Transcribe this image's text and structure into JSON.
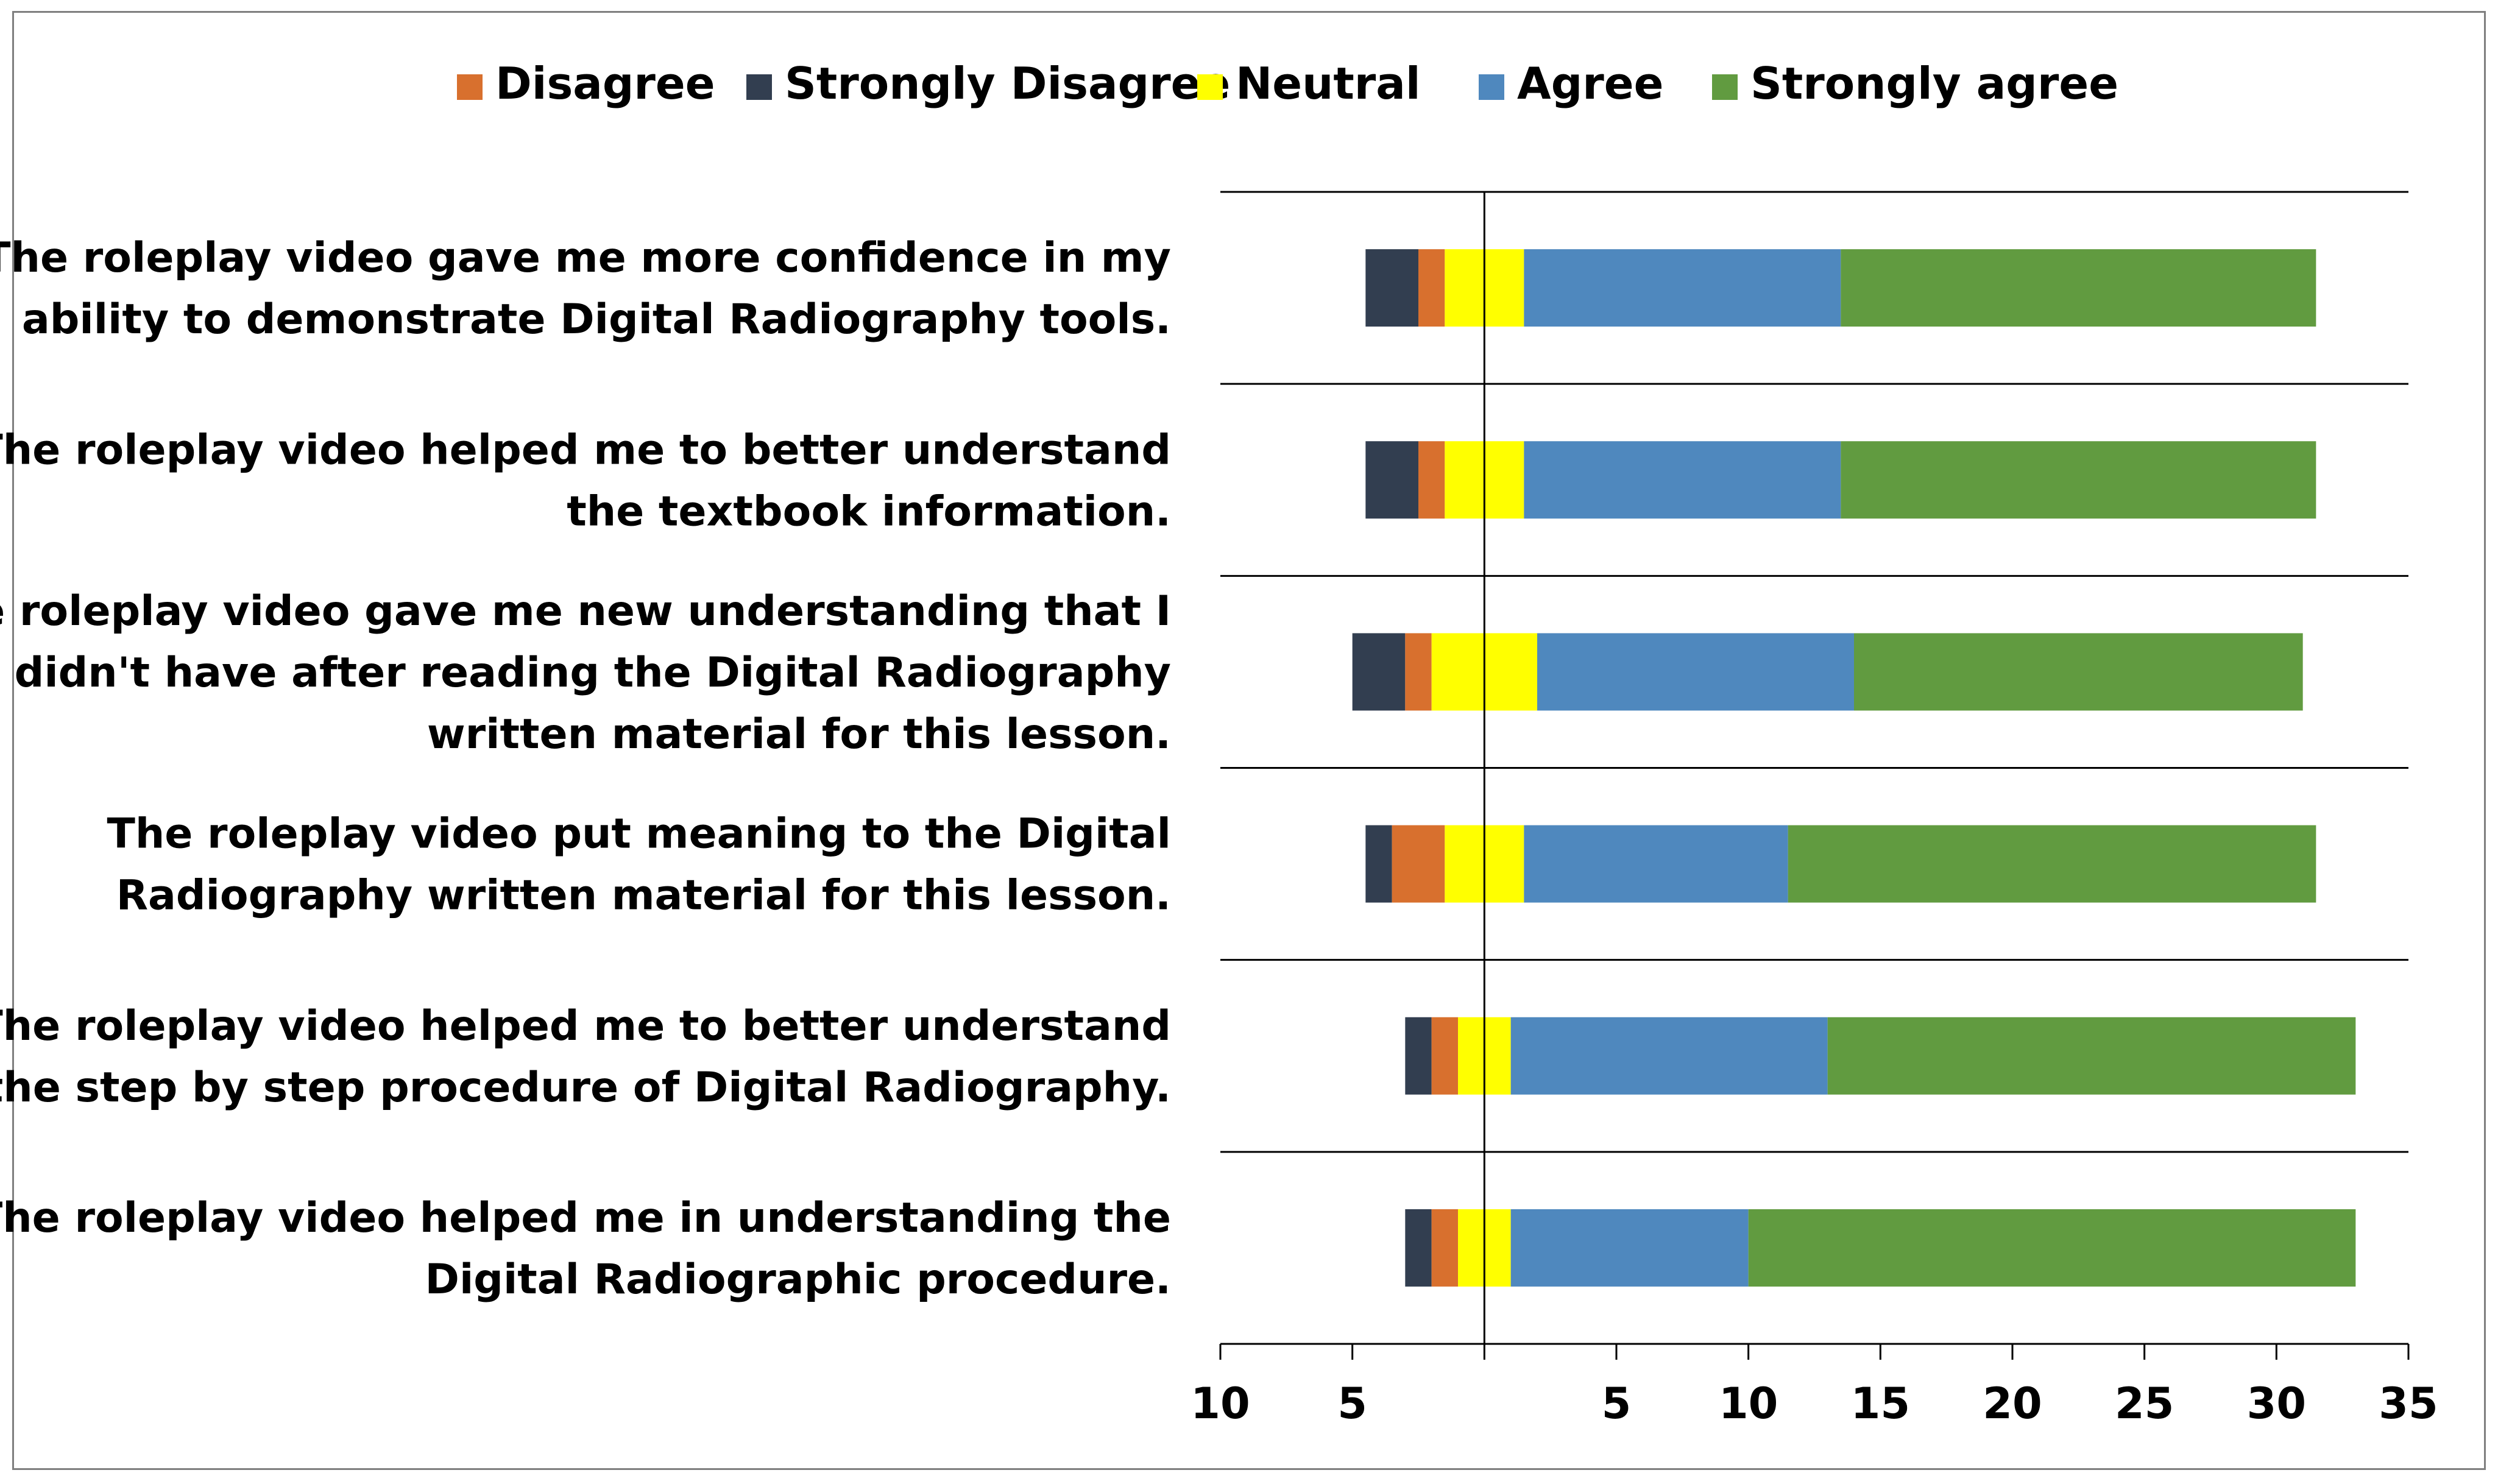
{
  "chart_data": {
    "type": "bar",
    "orientation": "horizontal",
    "stacked": "diverging",
    "title": "",
    "xlabel": "",
    "ylabel": "",
    "grid": false,
    "legend_position": "top",
    "xlim": [
      -10,
      35
    ],
    "x_ticks": [
      {
        "value": -10,
        "label": "10"
      },
      {
        "value": -5,
        "label": "5"
      },
      {
        "value": 5,
        "label": "5"
      },
      {
        "value": 10,
        "label": "10"
      },
      {
        "value": 15,
        "label": "15"
      },
      {
        "value": 20,
        "label": "20"
      },
      {
        "value": 25,
        "label": "25"
      },
      {
        "value": 30,
        "label": "30"
      },
      {
        "value": 35,
        "label": "35"
      }
    ],
    "legend": [
      {
        "key": "disagree",
        "label": "Disagree",
        "color": "#D8702E"
      },
      {
        "key": "strongly_disagree",
        "label": "Strongly Disagree",
        "color": "#323E50"
      },
      {
        "key": "neutral",
        "label": "Neutral",
        "color": "#FFFF00"
      },
      {
        "key": "agree",
        "label": "Agree",
        "color": "#4F88BE"
      },
      {
        "key": "strongly_agree",
        "label": "Strongly agree",
        "color": "#619B40"
      }
    ],
    "categories": [
      {
        "label_lines": [
          "The roleplay video gave me more confidence in my",
          "ability to demonstrate Digital Radiography tools."
        ],
        "strongly_disagree": 2,
        "disagree": 1,
        "neutral": 3,
        "agree": 12,
        "strongly_agree": 18
      },
      {
        "label_lines": [
          "The roleplay video helped me to better understand",
          "the textbook information."
        ],
        "strongly_disagree": 2,
        "disagree": 1,
        "neutral": 3,
        "agree": 12,
        "strongly_agree": 18
      },
      {
        "label_lines": [
          "The roleplay video gave me new understanding that I",
          "didn't have after reading the Digital Radiography",
          "written material for this lesson."
        ],
        "strongly_disagree": 2,
        "disagree": 1,
        "neutral": 4,
        "agree": 12,
        "strongly_agree": 17
      },
      {
        "label_lines": [
          "The roleplay video put meaning to the Digital",
          "Radiography  written material for this lesson."
        ],
        "strongly_disagree": 1,
        "disagree": 2,
        "neutral": 3,
        "agree": 10,
        "strongly_agree": 20
      },
      {
        "label_lines": [
          "The roleplay video helped me to better understand",
          "the step by step procedure of Digital Radiography."
        ],
        "strongly_disagree": 1,
        "disagree": 1,
        "neutral": 2,
        "agree": 12,
        "strongly_agree": 20
      },
      {
        "label_lines": [
          "The roleplay video helped me in understanding the",
          "Digital Radiographic procedure."
        ],
        "strongly_disagree": 1,
        "disagree": 1,
        "neutral": 2,
        "agree": 9,
        "strongly_agree": 23
      }
    ]
  }
}
